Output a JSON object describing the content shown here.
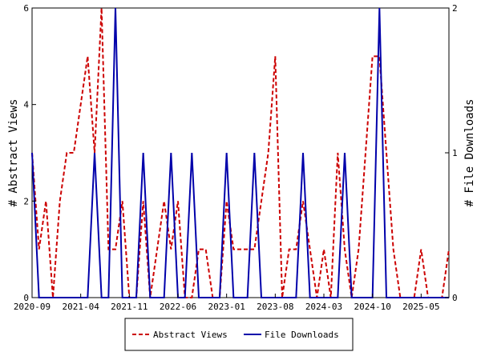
{
  "chart_data": {
    "type": "line",
    "x_tick_labels": [
      "2020-09",
      "2021-04",
      "2021-11",
      "2022-06",
      "2023-01",
      "2023-08",
      "2024-03",
      "2024-10",
      "2025-05"
    ],
    "y_left": {
      "label": "# Abstract Views",
      "ylim": [
        0,
        6
      ],
      "ticks": [
        "0",
        "2",
        "4",
        "6"
      ]
    },
    "y_right": {
      "label": "# File Downloads",
      "ylim": [
        0,
        2
      ],
      "ticks": [
        "0",
        "1",
        "2"
      ]
    },
    "legend_position": "bottom",
    "series": [
      {
        "name": "Abstract Views",
        "axis": "left",
        "color": "#cc0000",
        "style": "dashed",
        "values": [
          3,
          1,
          2,
          0,
          2,
          3,
          3,
          4,
          5,
          3,
          6,
          1,
          1,
          2,
          0,
          0,
          2,
          0,
          1,
          2,
          1,
          2,
          0,
          0,
          1,
          1,
          0,
          0,
          2,
          1,
          1,
          1,
          1,
          2,
          3,
          5,
          0,
          1,
          1,
          2,
          1,
          0,
          1,
          0,
          3,
          1,
          0,
          1,
          3,
          5,
          5,
          3,
          1,
          0,
          0,
          0,
          1,
          0,
          0,
          0,
          1
        ]
      },
      {
        "name": "File Downloads",
        "axis": "right",
        "color": "#0000aa",
        "style": "solid",
        "values": [
          1,
          0,
          0,
          0,
          0,
          0,
          0,
          0,
          0,
          1,
          0,
          0,
          2,
          0,
          0,
          0,
          1,
          0,
          0,
          0,
          1,
          0,
          0,
          1,
          0,
          0,
          0,
          0,
          1,
          0,
          0,
          0,
          1,
          0,
          0,
          0,
          0,
          0,
          0,
          1,
          0,
          0,
          0,
          0,
          0,
          1,
          0,
          0,
          0,
          0,
          2,
          0,
          0,
          0,
          0,
          0,
          0,
          0,
          0,
          0,
          0
        ]
      }
    ]
  }
}
